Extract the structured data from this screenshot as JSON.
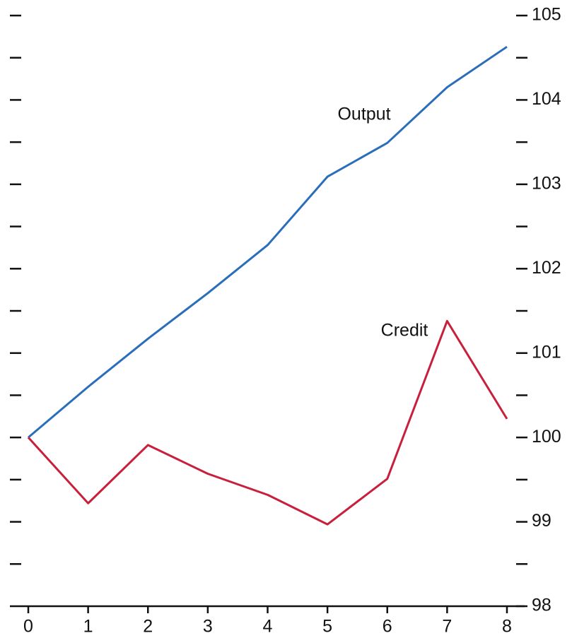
{
  "chart_data": {
    "type": "line",
    "x": [
      0,
      1,
      2,
      3,
      4,
      5,
      6,
      7,
      8
    ],
    "series": [
      {
        "name": "Output",
        "color": "#2a6ebb",
        "values": [
          100,
          100.6,
          101.17,
          101.71,
          102.28,
          103.09,
          103.49,
          104.15,
          104.63
        ]
      },
      {
        "name": "Credit",
        "color": "#c8203c",
        "values": [
          100,
          99.22,
          99.91,
          99.57,
          99.32,
          98.97,
          99.51,
          101.38,
          100.22
        ]
      }
    ],
    "xlim": [
      0,
      8
    ],
    "xticks": [
      0,
      1,
      2,
      3,
      4,
      5,
      6,
      7,
      8
    ],
    "ylim": [
      98,
      105
    ],
    "yticks": [
      98,
      99,
      100,
      101,
      102,
      103,
      104,
      105
    ],
    "yminorticks": [
      98.5,
      99.5,
      100.5,
      101.5,
      102.5,
      103.5,
      104.5
    ]
  }
}
